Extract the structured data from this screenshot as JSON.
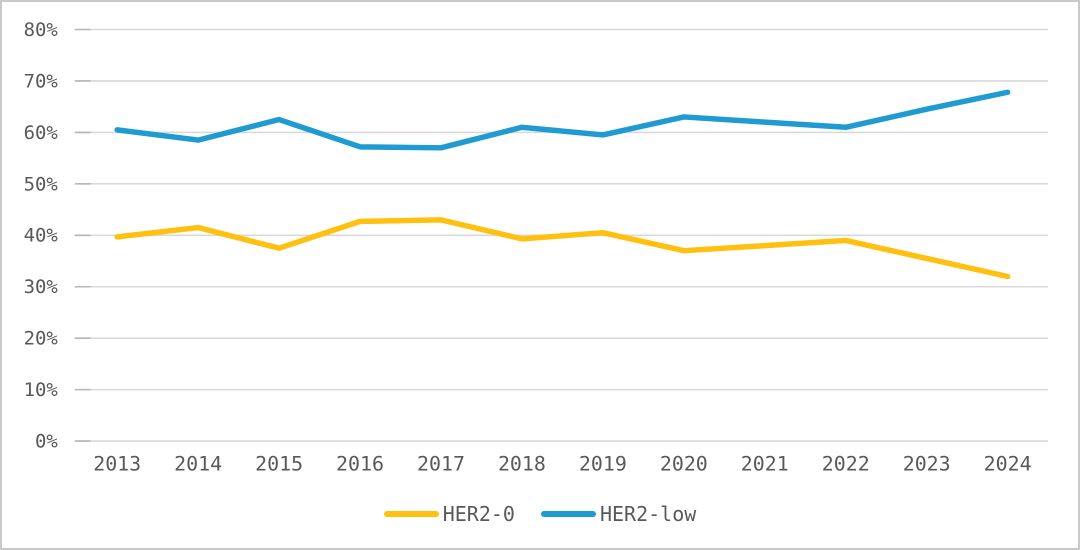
{
  "chart_data": {
    "type": "line",
    "title": "",
    "xlabel": "",
    "ylabel": "",
    "categories": [
      "2013",
      "2014",
      "2015",
      "2016",
      "2017",
      "2018",
      "2019",
      "2020",
      "2021",
      "2022",
      "2023",
      "2024"
    ],
    "series": [
      {
        "name": "HER2-0",
        "color": "#FFC010",
        "values": [
          39.7,
          41.5,
          37.5,
          42.7,
          43.0,
          39.3,
          40.5,
          37.0,
          38.0,
          39.0,
          35.5,
          32.0
        ]
      },
      {
        "name": "HER2-low",
        "color": "#1F9BD2",
        "values": [
          60.5,
          58.5,
          62.5,
          57.2,
          57.0,
          61.0,
          59.5,
          63.0,
          62.0,
          61.0,
          64.5,
          67.8
        ]
      }
    ],
    "ylim": [
      0,
      80
    ],
    "y_tick_labels": [
      "0%",
      "10%",
      "20%",
      "30%",
      "40%",
      "50%",
      "60%",
      "70%",
      "80%"
    ],
    "grid": "horizontal-only",
    "legend_position": "bottom-center"
  },
  "style": {
    "gridline_color": "#d9d9d9",
    "tick_color": "#b7b7b7",
    "label_color": "#595959",
    "frame_border_color": "#c9c9c9",
    "background_color": "#ffffff"
  }
}
